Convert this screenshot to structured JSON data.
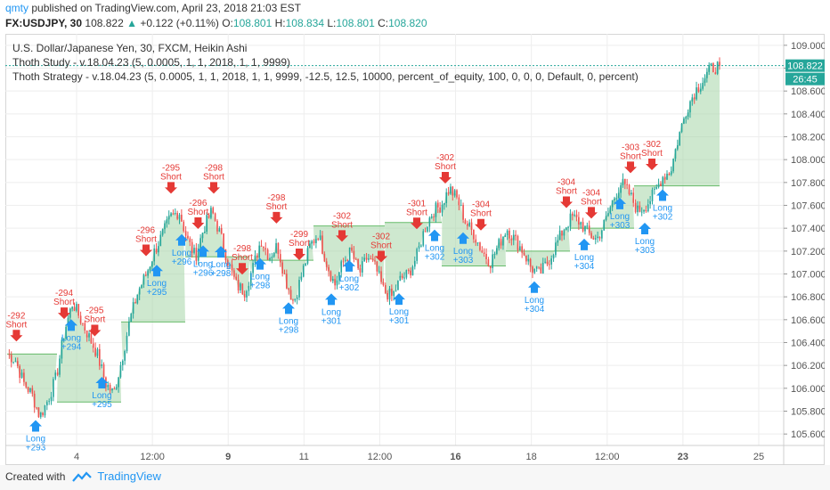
{
  "header": {
    "user": "qmty",
    "published": "published on TradingView.com, April 23, 2018 21:03 EST",
    "symbol": "FX:USDJPY, 30",
    "last": "108.822",
    "change": "+0.122 (+0.11%)",
    "o_label": "O:",
    "o": "108.801",
    "h_label": "H:",
    "h": "108.834",
    "l_label": "L:",
    "l": "108.801",
    "c_label": "C:",
    "c": "108.820"
  },
  "legend": {
    "line1": "U.S. Dollar/Japanese Yen, 30, FXCM, Heikin Ashi",
    "line2": "Thoth Study - v.18.04.23 (5, 0.0005, 1, 1, 2018, 1, 1, 9999)",
    "line3": "Thoth Strategy - v.18.04.23 (5, 0.0005, 1, 1, 2018, 1, 1, 9999, -12.5, 12.5, 10000, percent_of_equity, 100, 0, 0, 0, Default, 0, percent)"
  },
  "price_badges": {
    "last": "108.822",
    "countdown": "26:45"
  },
  "footer": {
    "created": "Created with",
    "brand": "TradingView"
  },
  "colors": {
    "up": "#26a69a",
    "down": "#ef5350",
    "fill": "#a5d6a7",
    "accent": "#2196f3",
    "short": "#e53935"
  },
  "chart_data": {
    "type": "candlestick",
    "y_ticks": [
      "109.000",
      "108.800",
      "108.600",
      "108.400",
      "108.200",
      "108.000",
      "107.800",
      "107.600",
      "107.400",
      "107.200",
      "107.000",
      "106.800",
      "106.600",
      "106.400",
      "106.200",
      "106.000",
      "105.800",
      "105.600"
    ],
    "ylim": [
      105.5,
      109.1
    ],
    "x_ticks": [
      "4",
      "12:00",
      "9",
      "11",
      "12:00",
      "16",
      "18",
      "12:00",
      "23",
      "25"
    ],
    "price_path": [
      106.3,
      106.25,
      106.05,
      105.95,
      105.75,
      105.9,
      106.1,
      106.5,
      106.75,
      106.6,
      106.45,
      106.3,
      106.05,
      105.95,
      106.25,
      106.6,
      106.85,
      107.0,
      107.2,
      107.35,
      107.5,
      107.55,
      107.3,
      107.15,
      107.4,
      107.55,
      107.35,
      107.1,
      106.9,
      106.85,
      107.05,
      107.3,
      107.15,
      107.25,
      106.95,
      106.75,
      107.0,
      107.25,
      107.35,
      107.1,
      106.9,
      107.1,
      107.2,
      107.0,
      107.15,
      107.05,
      106.85,
      106.8,
      106.95,
      107.0,
      107.15,
      107.4,
      107.55,
      107.6,
      107.75,
      107.65,
      107.45,
      107.35,
      107.2,
      107.1,
      107.25,
      107.4,
      107.3,
      107.2,
      107.05,
      107.0,
      107.1,
      107.25,
      107.4,
      107.5,
      107.45,
      107.35,
      107.3,
      107.45,
      107.65,
      107.8,
      107.7,
      107.55,
      107.6,
      107.7,
      107.85,
      107.9,
      108.2,
      108.45,
      108.6,
      108.7,
      108.8,
      108.82
    ],
    "fill_steps": [
      {
        "x0": 0.0,
        "x1": 0.07,
        "y": 106.3
      },
      {
        "x0": 0.07,
        "x1": 0.16,
        "y": 105.88
      },
      {
        "x0": 0.16,
        "x1": 0.25,
        "y": 106.58
      },
      {
        "x0": 0.25,
        "x1": 0.34,
        "y": 107.15
      },
      {
        "x0": 0.34,
        "x1": 0.43,
        "y": 107.12
      },
      {
        "x0": 0.43,
        "x1": 0.53,
        "y": 107.42
      },
      {
        "x0": 0.53,
        "x1": 0.61,
        "y": 107.45
      },
      {
        "x0": 0.61,
        "x1": 0.7,
        "y": 107.07
      },
      {
        "x0": 0.7,
        "x1": 0.79,
        "y": 107.2
      },
      {
        "x0": 0.79,
        "x1": 0.88,
        "y": 107.4
      },
      {
        "x0": 0.88,
        "x1": 1.0,
        "y": 107.77
      }
    ],
    "signals": [
      {
        "type": "short",
        "label": "-292",
        "x": 0.013
      },
      {
        "type": "long",
        "label": "+293",
        "x": 0.04
      },
      {
        "type": "short",
        "label": "-294",
        "x": 0.08
      },
      {
        "type": "long",
        "label": "+294",
        "x": 0.09
      },
      {
        "type": "short",
        "label": "-295",
        "x": 0.123
      },
      {
        "type": "long",
        "label": "+295",
        "x": 0.133
      },
      {
        "type": "short",
        "label": "-296",
        "x": 0.195
      },
      {
        "type": "long",
        "label": "+295",
        "x": 0.21
      },
      {
        "type": "short",
        "label": "-295",
        "x": 0.23
      },
      {
        "type": "long",
        "label": "+296",
        "x": 0.245
      },
      {
        "type": "short",
        "label": "-296",
        "x": 0.268
      },
      {
        "type": "long",
        "label": "+296",
        "x": 0.275
      },
      {
        "type": "short",
        "label": "-298",
        "x": 0.29
      },
      {
        "type": "long",
        "label": "+298",
        "x": 0.3
      },
      {
        "type": "short",
        "label": "-298",
        "x": 0.33
      },
      {
        "type": "long",
        "label": "+298",
        "x": 0.355
      },
      {
        "type": "short",
        "label": "-298",
        "x": 0.378
      },
      {
        "type": "long",
        "label": "+298",
        "x": 0.395
      },
      {
        "type": "short",
        "label": "-299",
        "x": 0.41
      },
      {
        "type": "long",
        "label": "+301",
        "x": 0.455
      },
      {
        "type": "short",
        "label": "-302",
        "x": 0.47
      },
      {
        "type": "long",
        "label": "+302",
        "x": 0.48
      },
      {
        "type": "short",
        "label": "-302",
        "x": 0.525
      },
      {
        "type": "long",
        "label": "+301",
        "x": 0.55
      },
      {
        "type": "short",
        "label": "-301",
        "x": 0.575
      },
      {
        "type": "long",
        "label": "+302",
        "x": 0.6
      },
      {
        "type": "short",
        "label": "-302",
        "x": 0.615
      },
      {
        "type": "long",
        "label": "+303",
        "x": 0.64
      },
      {
        "type": "short",
        "label": "-304",
        "x": 0.665
      },
      {
        "type": "long",
        "label": "+304",
        "x": 0.74
      },
      {
        "type": "short",
        "label": "-304",
        "x": 0.785
      },
      {
        "type": "long",
        "label": "+304",
        "x": 0.81
      },
      {
        "type": "short",
        "label": "-304",
        "x": 0.82
      },
      {
        "type": "long",
        "label": "+303",
        "x": 0.86
      },
      {
        "type": "short",
        "label": "-303",
        "x": 0.875
      },
      {
        "type": "long",
        "label": "+303",
        "x": 0.895
      },
      {
        "type": "short",
        "label": "-302",
        "x": 0.905
      },
      {
        "type": "long",
        "label": "+302",
        "x": 0.92
      }
    ]
  }
}
